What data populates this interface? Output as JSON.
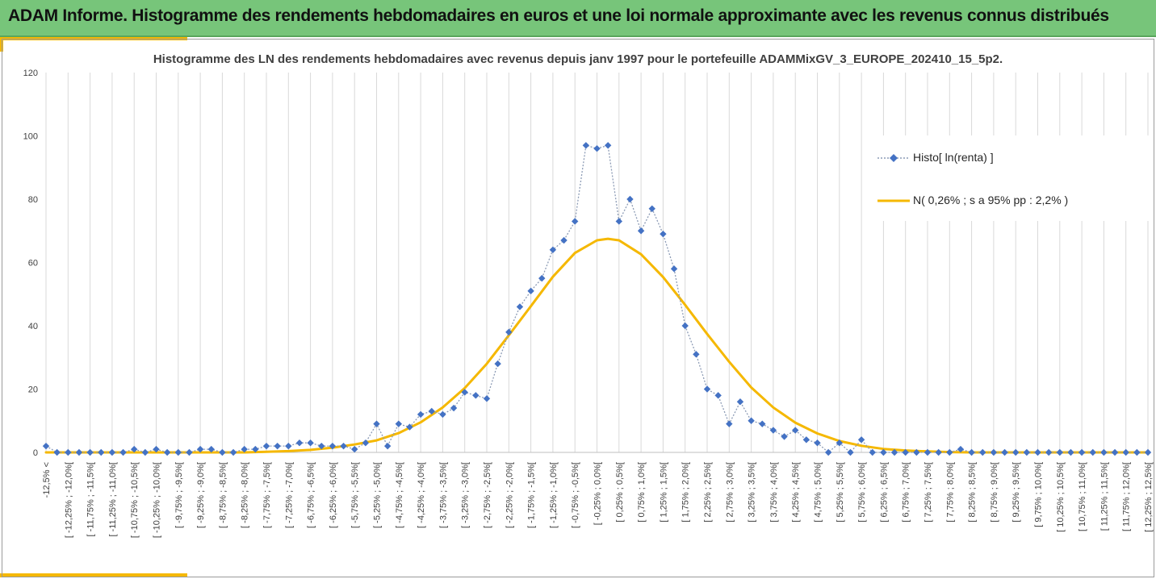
{
  "banner": {
    "title": "ADAM Informe. Histogramme des rendements hebdomadaires en euros et une loi normale approximante avec les revenus connus distribués"
  },
  "colors": {
    "banner_bg": "#77c57a",
    "accent": "#f5b800",
    "histo_series": "#4472c4",
    "normal_series": "#f5b800"
  },
  "chart_data": {
    "type": "line",
    "title": "Histogramme des LN des rendements hebdomadaires avec revenus depuis janv 1997 pour le portefeuille ADAMMixGV_3_EUROPE_202410_15_5p2.",
    "xlabel": "",
    "ylabel": "",
    "ylim": [
      0,
      120
    ],
    "yticks": [
      0,
      20,
      40,
      60,
      80,
      100,
      120
    ],
    "grid": "vertical",
    "legend_position": "right",
    "categories": [
      "-12,5% <",
      "[ -12,25% ; -12,0%[",
      "[ -11,75% ; -11,5%[",
      "[ -11,25% ; -11,0%[",
      "[ -10,75% ; -10,5%[",
      "[ -10,25% ; -10,0%[",
      "[ -9,75% ; -9,5%[",
      "[ -9,25% ; -9,0%[",
      "[ -8,75% ; -8,5%[",
      "[ -8,25% ; -8,0%[",
      "[ -7,75% ; -7,5%[",
      "[ -7,25% ; -7,0%[",
      "[ -6,75% ; -6,5%[",
      "[ -6,25% ; -6,0%[",
      "[ -5,75% ; -5,5%[",
      "[ -5,25% ; -5,0%[",
      "[ -4,75% ; -4,5%[",
      "[ -4,25% ; -4,0%[",
      "[ -3,75% ; -3,5%[",
      "[ -3,25% ; -3,0%[",
      "[ -2,75% ; -2,5%[",
      "[ -2,25% ; -2,0%[",
      "[ -1,75% ; -1,5%[",
      "[ -1,25% ; -1,0%[",
      "[ -0,75% ; -0,5%[",
      "[ -0,25% ; 0,0%[",
      "[ 0,25% ; 0,5%[",
      "[ 0,75% ; 1,0%[",
      "[ 1,25% ; 1,5%[",
      "[ 1,75% ; 2,0%[",
      "[ 2,25% ; 2,5%[",
      "[ 2,75% ; 3,0%[",
      "[ 3,25% ; 3,5%[",
      "[ 3,75% ; 4,0%[",
      "[ 4,25% ; 4,5%[",
      "[ 4,75% ; 5,0%[",
      "[ 5,25% ; 5,5%[",
      "[ 5,75% ; 6,0%[",
      "[ 6,25% ; 6,5%[",
      "[ 6,75% ; 7,0%[",
      "[ 7,25% ; 7,5%[",
      "[ 7,75% ; 8,0%[",
      "[ 8,25% ; 8,5%[",
      "[ 8,75% ; 9,0%[",
      "[ 9,25% ; 9,5%[",
      "[ 9,75% ; 10,0%[",
      "[ 10,25% ; 10,5%[",
      "[ 10,75% ; 11,0%[",
      "[ 11,25% ; 11,5%[",
      "[ 11,75% ; 12,0%[",
      "[ 12,25% ; 12,5%["
    ],
    "series": [
      {
        "name": "Histo[ ln(renta) ]",
        "style": "dotted-line-diamond-markers",
        "x": [
          -12.5,
          -12.25,
          -12.0,
          -11.75,
          -11.5,
          -11.25,
          -11.0,
          -10.75,
          -10.5,
          -10.25,
          -10.0,
          -9.75,
          -9.5,
          -9.25,
          -9.0,
          -8.75,
          -8.5,
          -8.25,
          -8.0,
          -7.75,
          -7.5,
          -7.25,
          -7.0,
          -6.75,
          -6.5,
          -6.25,
          -6.0,
          -5.75,
          -5.5,
          -5.25,
          -5.0,
          -4.75,
          -4.5,
          -4.25,
          -4.0,
          -3.75,
          -3.5,
          -3.25,
          -3.0,
          -2.75,
          -2.5,
          -2.25,
          -2.0,
          -1.75,
          -1.5,
          -1.25,
          -1.0,
          -0.75,
          -0.5,
          -0.25,
          0.0,
          0.25,
          0.5,
          0.75,
          1.0,
          1.25,
          1.5,
          1.75,
          2.0,
          2.25,
          2.5,
          2.75,
          3.0,
          3.25,
          3.5,
          3.75,
          4.0,
          4.25,
          4.5,
          4.75,
          5.0,
          5.25,
          5.5,
          5.75,
          6.0,
          6.25,
          6.5,
          6.75,
          7.0,
          7.25,
          7.5,
          7.75,
          8.0,
          8.25,
          8.5,
          8.75,
          9.0,
          9.25,
          9.5,
          9.75,
          10.0,
          10.25,
          10.5,
          10.75,
          11.0,
          11.25,
          11.5,
          11.75,
          12.0,
          12.25,
          12.5
        ],
        "values": [
          2,
          0,
          0,
          0,
          0,
          0,
          0,
          0,
          1,
          0,
          1,
          0,
          0,
          0,
          1,
          1,
          0,
          0,
          1,
          1,
          2,
          2,
          2,
          3,
          3,
          2,
          2,
          2,
          1,
          3,
          9,
          2,
          9,
          8,
          12,
          13,
          12,
          14,
          19,
          18,
          17,
          28,
          38,
          46,
          51,
          55,
          64,
          67,
          73,
          97,
          96,
          97,
          73,
          80,
          70,
          77,
          69,
          58,
          40,
          31,
          20,
          18,
          9,
          16,
          10,
          9,
          7,
          5,
          7,
          4,
          3,
          0,
          3,
          0,
          4,
          0,
          0,
          0,
          0,
          0,
          0,
          0,
          0,
          1,
          0,
          0,
          0,
          0,
          0,
          0,
          0,
          0,
          0,
          0,
          0,
          0,
          0,
          0,
          0,
          0,
          0
        ]
      },
      {
        "name": "N( 0,26% ; s a 95% pp : 2,2% )",
        "style": "smooth-line",
        "x": [
          -12.5,
          -12.0,
          -11.5,
          -11.0,
          -10.5,
          -10.0,
          -9.5,
          -9.0,
          -8.5,
          -8.0,
          -7.5,
          -7.0,
          -6.5,
          -6.0,
          -5.5,
          -5.0,
          -4.5,
          -4.0,
          -3.5,
          -3.0,
          -2.5,
          -2.0,
          -1.5,
          -1.0,
          -0.5,
          0.0,
          0.25,
          0.5,
          1.0,
          1.5,
          2.0,
          2.5,
          3.0,
          3.5,
          4.0,
          4.5,
          5.0,
          5.5,
          6.0,
          6.5,
          7.0,
          7.5,
          8.0,
          8.5,
          9.0,
          9.5,
          10.0,
          10.5,
          11.0,
          11.5,
          12.0,
          12.5
        ],
        "values": [
          0,
          0,
          0,
          0,
          0,
          0,
          0,
          0,
          0,
          0,
          0.2,
          0.4,
          0.8,
          1.5,
          2.5,
          3.8,
          6.1,
          9.5,
          14.2,
          20.3,
          28.0,
          37.0,
          46.2,
          55.5,
          63.0,
          67.0,
          67.5,
          67.0,
          62.6,
          55.4,
          46.6,
          37.4,
          28.6,
          20.5,
          14.2,
          9.4,
          6.0,
          3.6,
          2.1,
          1.1,
          0.6,
          0.3,
          0.1,
          0,
          0,
          0,
          0,
          0,
          0,
          0,
          0,
          0
        ]
      }
    ]
  }
}
